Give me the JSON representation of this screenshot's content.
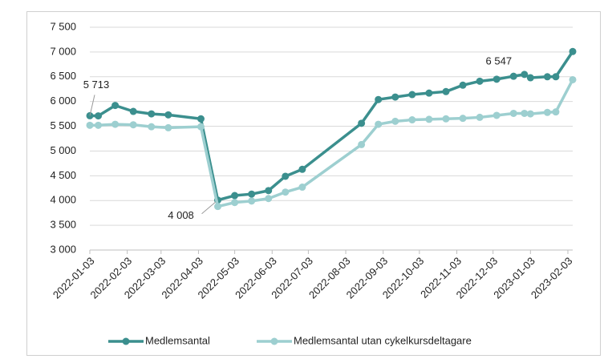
{
  "chart_data": {
    "type": "line",
    "xlim": [
      "2022-01-03",
      "2023-02-07"
    ],
    "xticks": [
      "2022-01-03",
      "2022-02-03",
      "2022-03-03",
      "2022-04-03",
      "2022-05-03",
      "2022-06-03",
      "2022-07-03",
      "2022-08-03",
      "2022-09-03",
      "2022-10-03",
      "2022-11-03",
      "2022-12-03",
      "2023-01-03",
      "2023-02-03"
    ],
    "x": [
      "2022-01-03",
      "2022-01-10",
      "2022-01-24",
      "2022-02-08",
      "2022-02-23",
      "2022-03-09",
      "2022-04-05",
      "2022-04-19",
      "2022-05-03",
      "2022-05-17",
      "2022-05-31",
      "2022-06-14",
      "2022-06-28",
      "2022-08-16",
      "2022-08-30",
      "2022-09-13",
      "2022-09-27",
      "2022-10-11",
      "2022-10-25",
      "2022-11-08",
      "2022-11-22",
      "2022-12-06",
      "2022-12-20",
      "2022-12-29",
      "2023-01-03",
      "2023-01-17",
      "2023-01-24",
      "2023-02-07"
    ],
    "ylim": [
      3000,
      7500
    ],
    "yticks": [
      {
        "value": 3000,
        "label": "3 000"
      },
      {
        "value": 3500,
        "label": "3 500"
      },
      {
        "value": 4000,
        "label": "4 000"
      },
      {
        "value": 4500,
        "label": "4 500"
      },
      {
        "value": 5000,
        "label": "5 000"
      },
      {
        "value": 5500,
        "label": "5 500"
      },
      {
        "value": 6000,
        "label": "6 000"
      },
      {
        "value": 6500,
        "label": "6 500"
      },
      {
        "value": 7000,
        "label": "7 000"
      },
      {
        "value": 7500,
        "label": "7 500"
      }
    ],
    "grid": true,
    "legend": "bottom",
    "series": [
      {
        "name": "Medlemsantal",
        "color": "#3b8f8e",
        "values": [
          5713,
          5710,
          5920,
          5800,
          5750,
          5730,
          5650,
          4008,
          4100,
          4130,
          4200,
          4490,
          4630,
          5560,
          6040,
          6090,
          6140,
          6170,
          6200,
          6330,
          6410,
          6450,
          6510,
          6547,
          6480,
          6500,
          6500,
          7010
        ],
        "value_labels": [
          "5 713",
          null,
          null,
          null,
          null,
          null,
          null,
          "4 008",
          null,
          null,
          null,
          null,
          null,
          null,
          null,
          null,
          null,
          null,
          null,
          null,
          null,
          null,
          null,
          "6 547",
          null,
          null,
          null,
          null
        ]
      },
      {
        "name": "Medlemsantal utan cykelkursdeltagare",
        "color": "#9dcfd0",
        "values": [
          5520,
          5520,
          5540,
          5530,
          5490,
          5470,
          5490,
          3880,
          3960,
          3990,
          4040,
          4170,
          4270,
          5130,
          5540,
          5600,
          5630,
          5640,
          5650,
          5660,
          5680,
          5720,
          5760,
          5760,
          5750,
          5780,
          5790,
          6440
        ]
      }
    ]
  }
}
